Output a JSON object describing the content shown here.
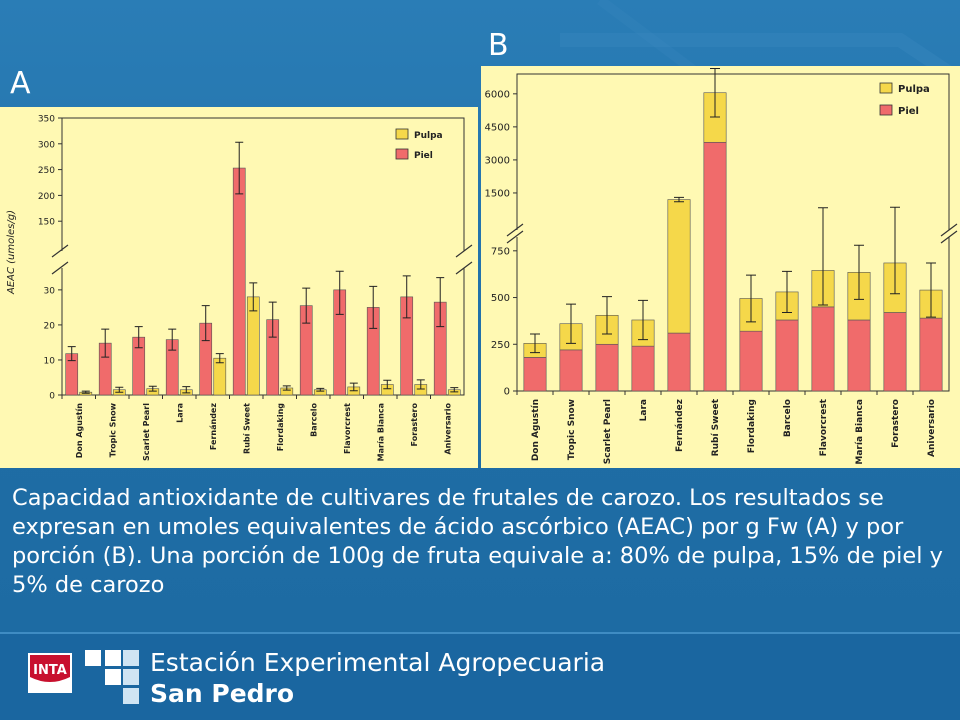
{
  "slide": {
    "label_a": "A",
    "label_b": "B",
    "caption": "Capacidad antioxidante de cultivares de frutales de carozo. Los resultados se expresan en umoles equivalentes de ácido ascórbico (AEAC) por g Fw (A) y por porción (B). Una porción de 100g de fruta equivale a: 80% de pulpa, 15% de piel y 5% de carozo",
    "footer": {
      "logo_text": "INTA",
      "line1": "Estación Experimental Agropecuaria",
      "line2": "San Pedro"
    },
    "colors": {
      "background": "#1f6da5",
      "chart_bg": "#fff9b3",
      "pulpa": "#f5d84a",
      "piel": "#f06b6b"
    }
  },
  "chart_data": [
    {
      "id": "A",
      "type": "bar",
      "layout": "grouped",
      "ylabel": "AEAC (umoles/g)",
      "categories": [
        "Don Agustín",
        "Tropic Snow",
        "Scarlet Pearl",
        "Lara",
        "Fernández",
        "Rubí Sweet",
        "Flordaking",
        "Barcelo",
        "Flavorcrest",
        "María Bianca",
        "Forastero",
        "Aniversario"
      ],
      "axis_break": true,
      "lower_ticks": [
        0,
        10,
        20,
        30
      ],
      "upper_ticks": [
        150,
        200,
        250,
        300,
        350
      ],
      "legend": {
        "position": "top-right",
        "entries": [
          "Pulpa",
          "Piel"
        ]
      },
      "series": [
        {
          "name": "Piel",
          "color": "#f06b6b",
          "values": [
            11.8,
            14.8,
            16.5,
            15.8,
            20.5,
            253,
            21.5,
            25.5,
            30,
            25,
            28,
            26.5
          ],
          "errors": [
            2,
            4,
            3,
            3,
            5,
            50,
            5,
            5,
            7,
            6,
            6,
            7
          ]
        },
        {
          "name": "Pulpa",
          "color": "#f5d84a",
          "values": [
            0.8,
            1.5,
            1.8,
            1.5,
            10.5,
            28,
            2,
            1.5,
            2.3,
            3,
            3,
            1.5
          ],
          "errors": [
            0.3,
            0.7,
            0.7,
            0.9,
            1.3,
            4,
            0.6,
            0.4,
            1.1,
            1.2,
            1.3,
            0.6
          ]
        }
      ]
    },
    {
      "id": "B",
      "type": "bar",
      "layout": "stacked",
      "categories": [
        "Don Agustín",
        "Tropic Snow",
        "Scarlet Pearl",
        "Lara",
        "Fernández",
        "Rubí Sweet",
        "Flordaking",
        "Barcelo",
        "Flavorcrest",
        "María Bianca",
        "Forastero",
        "Aniversario"
      ],
      "axis_break": true,
      "lower_ticks": [
        0,
        250,
        500,
        750
      ],
      "upper_ticks": [
        1500,
        3000,
        4500,
        6000
      ],
      "legend": {
        "position": "top-right",
        "entries": [
          "Pulpa",
          "Piel"
        ]
      },
      "series": [
        {
          "name": "Piel",
          "color": "#f06b6b",
          "values": [
            180,
            220,
            250,
            240,
            310,
            3800,
            320,
            380,
            450,
            380,
            420,
            390
          ]
        },
        {
          "name": "Pulpa",
          "color": "#f5d84a",
          "values": [
            75,
            140,
            155,
            140,
            890,
            2250,
            175,
            150,
            195,
            255,
            265,
            150
          ]
        }
      ],
      "totals": [
        255,
        360,
        405,
        380,
        1200,
        6050,
        495,
        530,
        645,
        635,
        685,
        540
      ],
      "errors": [
        50,
        105,
        100,
        105,
        100,
        1100,
        125,
        110,
        185,
        145,
        165,
        145
      ]
    }
  ]
}
